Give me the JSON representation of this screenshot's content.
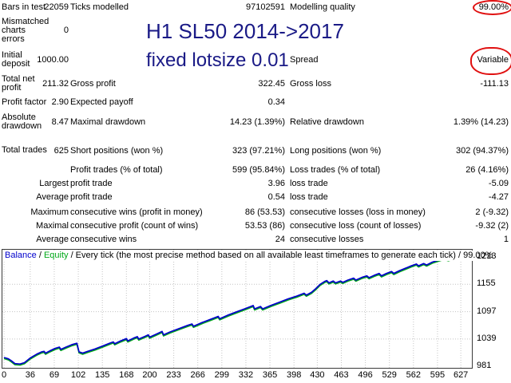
{
  "colors": {
    "annotation_blue": "#1a1a86",
    "highlight_red": "#e01010",
    "balance_line": "#0000cc",
    "equity_line": "#00a818",
    "grid": "#c4c4c4"
  },
  "annotations": {
    "line1": "H1 SL50 2014->2017",
    "line2": "fixed lotsize 0.01"
  },
  "stats": {
    "rows": [
      {
        "label1": "Bars in test",
        "value1": "22059",
        "label2": "Ticks modelled",
        "value2": "97102591",
        "label3": "Modelling quality",
        "value3": "99.00%"
      },
      {
        "label1": "Mismatched charts errors",
        "value1": "0",
        "label2": "",
        "value2": "",
        "label3": "",
        "value3": ""
      },
      {
        "label1": "Initial deposit",
        "value1": "1000.00",
        "label2": "",
        "value2": "",
        "label3": "Spread",
        "value3": "Variable"
      },
      {
        "label1": "Total net profit",
        "value1": "211.32",
        "label2": "Gross profit",
        "value2": "322.45",
        "label3": "Gross loss",
        "value3": "-111.13"
      },
      {
        "label1": "Profit factor",
        "value1": "2.90",
        "label2": "Expected payoff",
        "value2": "0.34",
        "label3": "",
        "value3": ""
      },
      {
        "label1": "Absolute drawdown",
        "value1": "8.47",
        "label2": "Maximal drawdown",
        "value2": "14.23 (1.39%)",
        "label3": "Relative drawdown",
        "value3": "1.39% (14.23)"
      },
      {
        "label1": "Total trades",
        "value1": "625",
        "label2": "Short positions (won %)",
        "value2": "323 (97.21%)",
        "label3": "Long positions (won %)",
        "value3": "302 (94.37%)"
      },
      {
        "label1": "",
        "value1": "",
        "label2": "Profit trades (% of total)",
        "value2": "599 (95.84%)",
        "label3": "Loss trades (% of total)",
        "value3": "26 (4.16%)"
      },
      {
        "label1": "",
        "value1": "Largest",
        "label2": "profit trade",
        "value2": "3.96",
        "label3": "loss trade",
        "value3": "-5.09"
      },
      {
        "label1": "",
        "value1": "Average",
        "label2": "profit trade",
        "value2": "0.54",
        "label3": "loss trade",
        "value3": "-4.27"
      },
      {
        "label1": "",
        "value1": "Maximum",
        "label2": "consecutive wins (profit in money)",
        "value2": "86 (53.53)",
        "label3": "consecutive losses (loss in money)",
        "value3": "2 (-9.32)"
      },
      {
        "label1": "",
        "value1": "Maximal",
        "label2": "consecutive profit (count of wins)",
        "value2": "53.53 (86)",
        "label3": "consecutive loss (count of losses)",
        "value3": "-9.32 (2)"
      },
      {
        "label1": "",
        "value1": "Average",
        "label2": "consecutive wins",
        "value2": "24",
        "label3": "consecutive losses",
        "value3": "1"
      }
    ]
  },
  "chart_data": {
    "type": "line",
    "header": {
      "balance_label": "Balance",
      "separator": " / ",
      "equity_label": "Equity",
      "description": " / Every tick (the most precise method based on all available least timeframes to generate each tick) / 99.00%"
    },
    "xlabel": "",
    "ylabel": "",
    "x_ticks": [
      0,
      36,
      69,
      102,
      135,
      168,
      200,
      233,
      266,
      299,
      332,
      365,
      398,
      430,
      463,
      496,
      529,
      562,
      595,
      627
    ],
    "y_ticks": [
      981,
      1039,
      1097,
      1155,
      1213
    ],
    "xlim": [
      0,
      641
    ],
    "ylim": [
      976,
      1230
    ],
    "grid": "dotted",
    "legend_position": "top-left",
    "series": [
      {
        "name": "Balance",
        "color": "#0000cc",
        "points": [
          [
            0,
            1000
          ],
          [
            6,
            997
          ],
          [
            10,
            993
          ],
          [
            15,
            987
          ],
          [
            22,
            986
          ],
          [
            28,
            989
          ],
          [
            36,
            999
          ],
          [
            45,
            1007
          ],
          [
            52,
            1012
          ],
          [
            55,
            1013
          ],
          [
            57,
            1009
          ],
          [
            63,
            1014
          ],
          [
            70,
            1019
          ],
          [
            76,
            1022
          ],
          [
            78,
            1017
          ],
          [
            85,
            1022
          ],
          [
            93,
            1027
          ],
          [
            100,
            1030
          ],
          [
            103,
            1012
          ],
          [
            108,
            1009
          ],
          [
            115,
            1013
          ],
          [
            125,
            1018
          ],
          [
            135,
            1024
          ],
          [
            145,
            1030
          ],
          [
            150,
            1033
          ],
          [
            152,
            1029
          ],
          [
            160,
            1035
          ],
          [
            168,
            1040
          ],
          [
            170,
            1035
          ],
          [
            178,
            1041
          ],
          [
            183,
            1044
          ],
          [
            185,
            1039
          ],
          [
            194,
            1045
          ],
          [
            198,
            1048
          ],
          [
            200,
            1043
          ],
          [
            210,
            1050
          ],
          [
            217,
            1055
          ],
          [
            219,
            1048
          ],
          [
            228,
            1054
          ],
          [
            240,
            1061
          ],
          [
            252,
            1068
          ],
          [
            258,
            1071
          ],
          [
            260,
            1066
          ],
          [
            272,
            1074
          ],
          [
            284,
            1081
          ],
          [
            294,
            1087
          ],
          [
            296,
            1082
          ],
          [
            308,
            1090
          ],
          [
            320,
            1097
          ],
          [
            332,
            1104
          ],
          [
            342,
            1110
          ],
          [
            344,
            1103
          ],
          [
            352,
            1108
          ],
          [
            355,
            1103
          ],
          [
            366,
            1110
          ],
          [
            378,
            1117
          ],
          [
            390,
            1124
          ],
          [
            402,
            1130
          ],
          [
            412,
            1136
          ],
          [
            415,
            1132
          ],
          [
            422,
            1138
          ],
          [
            428,
            1146
          ],
          [
            434,
            1155
          ],
          [
            440,
            1161
          ],
          [
            443,
            1163
          ],
          [
            446,
            1158
          ],
          [
            452,
            1162
          ],
          [
            455,
            1158
          ],
          [
            462,
            1162
          ],
          [
            465,
            1159
          ],
          [
            472,
            1164
          ],
          [
            480,
            1168
          ],
          [
            483,
            1164
          ],
          [
            492,
            1170
          ],
          [
            498,
            1173
          ],
          [
            501,
            1169
          ],
          [
            508,
            1174
          ],
          [
            515,
            1178
          ],
          [
            518,
            1173
          ],
          [
            525,
            1178
          ],
          [
            532,
            1182
          ],
          [
            535,
            1178
          ],
          [
            543,
            1184
          ],
          [
            551,
            1189
          ],
          [
            559,
            1194
          ],
          [
            566,
            1198
          ],
          [
            569,
            1194
          ],
          [
            576,
            1199
          ],
          [
            580,
            1196
          ],
          [
            588,
            1202
          ],
          [
            596,
            1206
          ],
          [
            604,
            1210
          ],
          [
            610,
            1207
          ],
          [
            618,
            1211
          ],
          [
            626,
            1213
          ],
          [
            640,
            1215
          ]
        ]
      },
      {
        "name": "Equity",
        "color": "#00a818",
        "points": "same-as-balance"
      }
    ]
  }
}
